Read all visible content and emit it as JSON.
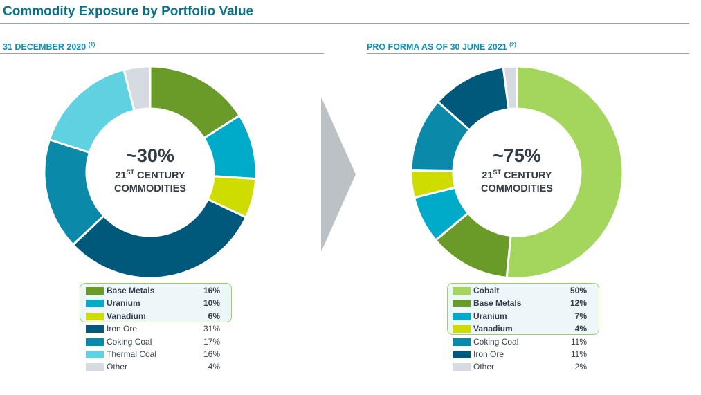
{
  "title": "Commodity Exposure by Portfolio Value",
  "chart_data": [
    {
      "type": "pie",
      "title": "31 DECEMBER 2020",
      "title_note": "(1)",
      "center_value": "~30%",
      "center_line1_prefix": "21",
      "center_line1_sup": "ST",
      "center_line1_rest": " CENTURY",
      "center_line2": "COMMODITIES",
      "slices": [
        {
          "label": "Base Metals",
          "value": 16,
          "display": "16%",
          "color": "#6a9b28",
          "highlight": true
        },
        {
          "label": "Uranium",
          "value": 10,
          "display": "10%",
          "color": "#00aac9",
          "highlight": true
        },
        {
          "label": "Vanadium",
          "value": 6,
          "display": "6%",
          "color": "#cfdc00",
          "highlight": true
        },
        {
          "label": "Iron Ore",
          "value": 31,
          "display": "31%",
          "color": "#00587b",
          "highlight": false
        },
        {
          "label": "Coking Coal",
          "value": 17,
          "display": "17%",
          "color": "#0a89a8",
          "highlight": false
        },
        {
          "label": "Thermal Coal",
          "value": 16,
          "display": "16%",
          "color": "#5fd1e0",
          "highlight": false
        },
        {
          "label": "Other",
          "value": 4,
          "display": "4%",
          "color": "#d5dbe0",
          "highlight": false
        }
      ]
    },
    {
      "type": "pie",
      "title": "PRO FORMA AS OF 30 JUNE 2021",
      "title_note": "(2)",
      "center_value": "~75%",
      "center_line1_prefix": "21",
      "center_line1_sup": "ST",
      "center_line1_rest": " CENTURY",
      "center_line2": "COMMODITIES",
      "slices": [
        {
          "label": "Cobalt",
          "value": 50,
          "display": "50%",
          "color": "#a4d65e",
          "highlight": true
        },
        {
          "label": "Base Metals",
          "value": 12,
          "display": "12%",
          "color": "#6a9b28",
          "highlight": true
        },
        {
          "label": "Uranium",
          "value": 7,
          "display": "7%",
          "color": "#00aac9",
          "highlight": true
        },
        {
          "label": "Vanadium",
          "value": 4,
          "display": "4%",
          "color": "#cfdc00",
          "highlight": true
        },
        {
          "label": "Coking Coal",
          "value": 11,
          "display": "11%",
          "color": "#0a89a8",
          "highlight": false
        },
        {
          "label": "Iron Ore",
          "value": 11,
          "display": "11%",
          "color": "#00587b",
          "highlight": false
        },
        {
          "label": "Other",
          "value": 2,
          "display": "2%",
          "color": "#d5dbe0",
          "highlight": false
        }
      ]
    }
  ],
  "arrow_color": "#bcc1c5"
}
